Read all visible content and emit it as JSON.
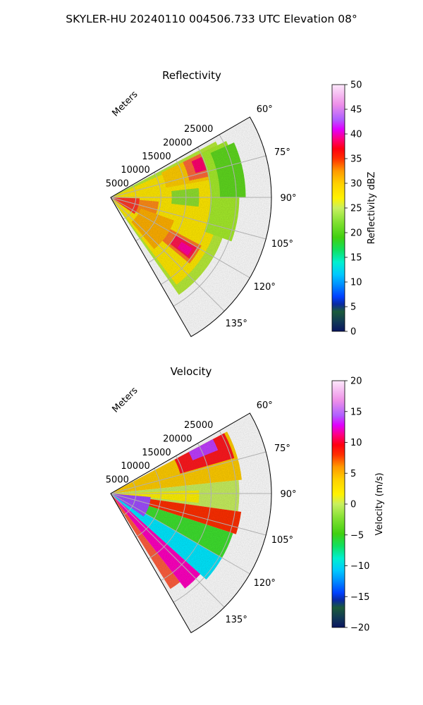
{
  "figure": {
    "suptitle": "SKYLER-HU  20240110  004506.733 UTC Elevation 08°"
  },
  "chart_data": [
    {
      "type": "heatmap",
      "title": "Reflectivity",
      "projection": "polar sector",
      "radial_label": "Meters",
      "radial_ticks": [
        "5000",
        "10000",
        "15000",
        "20000",
        "25000"
      ],
      "radial_tick_values": [
        5000,
        10000,
        15000,
        20000,
        25000
      ],
      "rlim": [
        0,
        32000
      ],
      "angular_ticks": [
        "60°",
        "75°",
        "90°",
        "105°",
        "120°",
        "135°"
      ],
      "angular_tick_values": [
        60,
        75,
        90,
        105,
        120,
        135
      ],
      "theta_range": [
        60,
        150
      ],
      "grid": true,
      "colorbar": {
        "label": "Reflectivity dBZ",
        "range": [
          0,
          50
        ],
        "ticks": [
          "0",
          "5",
          "10",
          "15",
          "20",
          "25",
          "30",
          "35",
          "40",
          "45",
          "50"
        ],
        "tick_values": [
          0,
          5,
          10,
          15,
          20,
          25,
          30,
          35,
          40,
          45,
          50
        ]
      }
    },
    {
      "type": "heatmap",
      "title": "Velocity",
      "projection": "polar sector",
      "radial_label": "Meters",
      "radial_ticks": [
        "5000",
        "10000",
        "15000",
        "20000",
        "25000"
      ],
      "radial_tick_values": [
        5000,
        10000,
        15000,
        20000,
        25000
      ],
      "rlim": [
        0,
        32000
      ],
      "angular_ticks": [
        "60°",
        "75°",
        "90°",
        "105°",
        "120°",
        "135°"
      ],
      "angular_tick_values": [
        60,
        75,
        90,
        105,
        120,
        135
      ],
      "theta_range": [
        60,
        150
      ],
      "grid": true,
      "colorbar": {
        "label": "Velocity (m/s)",
        "range": [
          -20,
          20
        ],
        "ticks": [
          "−20",
          "−15",
          "−10",
          "−5",
          "0",
          "5",
          "10",
          "15",
          "20"
        ],
        "tick_values": [
          -20,
          -15,
          -10,
          -5,
          0,
          5,
          10,
          15,
          20
        ]
      }
    }
  ]
}
